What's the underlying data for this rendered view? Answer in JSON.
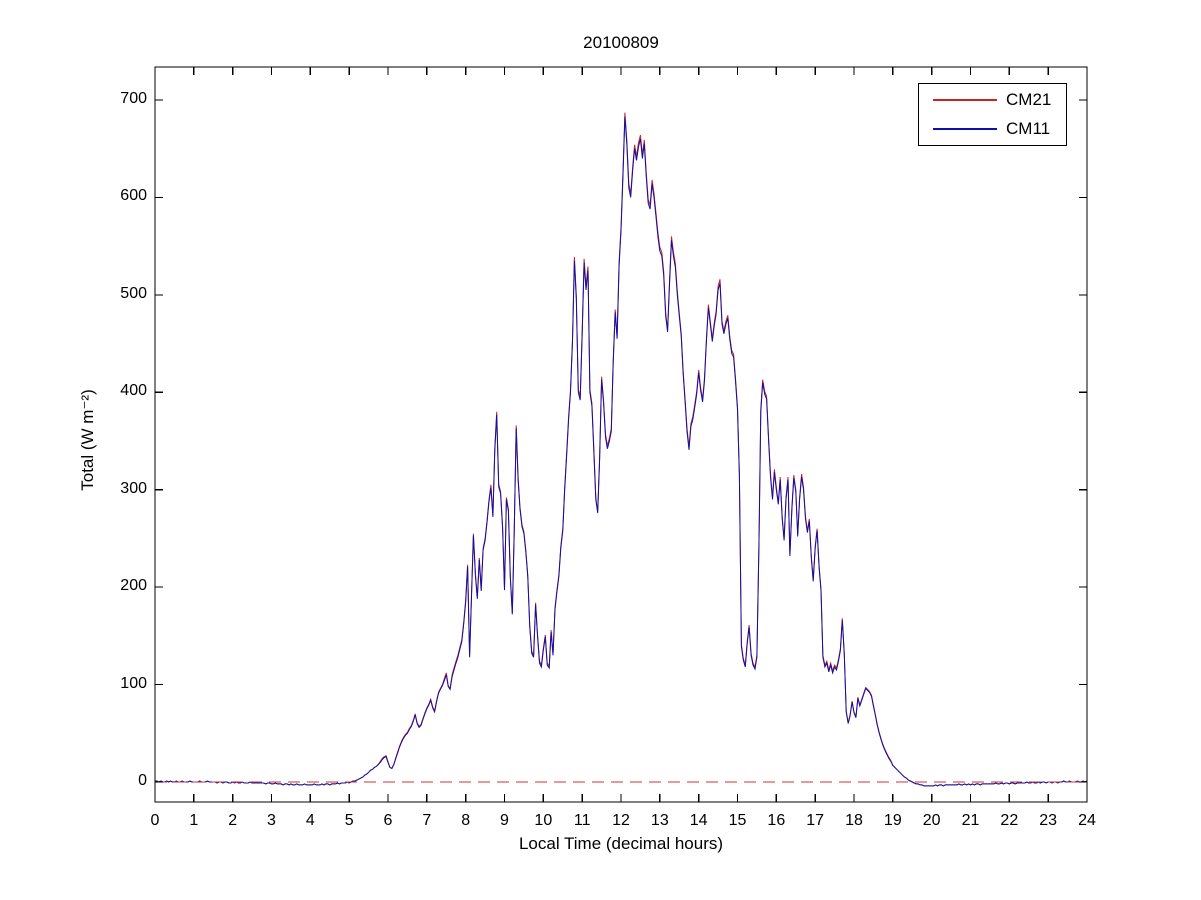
{
  "figure": {
    "background": "#ffffff",
    "frame_color": "#000000"
  },
  "legend": {
    "position": "top-right"
  },
  "chart_data": {
    "type": "line",
    "title": "20100809",
    "xlabel": "Local Time (decimal hours)",
    "ylabel": "Total (W m⁻²)",
    "xlim": [
      0,
      24
    ],
    "ylim": [
      -20,
      734
    ],
    "grid": false,
    "legend_position": "top-right",
    "x_ticks": [
      0,
      1,
      2,
      3,
      4,
      5,
      6,
      7,
      8,
      9,
      10,
      11,
      12,
      13,
      14,
      15,
      16,
      17,
      18,
      19,
      20,
      21,
      22,
      23,
      24
    ],
    "y_ticks": [
      0,
      100,
      200,
      300,
      400,
      500,
      600,
      700
    ],
    "x_start": 0,
    "x_step": 0.05,
    "n_points": 481,
    "zero_reference_line": {
      "y": 0,
      "color": "#cc3333",
      "style": "dashed"
    },
    "series": [
      {
        "name": "CM21",
        "color": "#cc2222",
        "style": "solid",
        "y": [
          1,
          1,
          0,
          1,
          0,
          0,
          1,
          0,
          1,
          0,
          0,
          1,
          0,
          0,
          1,
          0,
          0,
          0,
          1,
          0,
          0,
          0,
          0,
          1,
          0,
          0,
          0,
          1,
          0,
          0,
          0,
          0,
          -1,
          0,
          0,
          -1,
          0,
          0,
          -1,
          -1,
          0,
          -1,
          0,
          -1,
          -1,
          0,
          -1,
          -1,
          -1,
          0,
          -1,
          -1,
          -1,
          -1,
          -1,
          -1,
          -1,
          -2,
          -1,
          -1,
          -2,
          -2,
          -1,
          -2,
          -2,
          -2,
          -3,
          -2,
          -2,
          -3,
          -2,
          -3,
          -3,
          -2,
          -3,
          -3,
          -3,
          -2,
          -3,
          -3,
          -3,
          -3,
          -2,
          -3,
          -3,
          -3,
          -2,
          -3,
          -2,
          -2,
          -3,
          -2,
          -2,
          -2,
          -1,
          -2,
          -1,
          -1,
          -1,
          0,
          -1,
          0,
          1,
          1,
          2,
          3,
          4,
          5,
          7,
          8,
          10,
          12,
          13,
          15,
          16,
          18,
          21,
          24,
          26,
          27,
          21,
          15,
          14,
          18,
          25,
          31,
          37,
          42,
          46,
          49,
          51,
          55,
          58,
          63,
          70,
          61,
          57,
          59,
          65,
          71,
          76,
          80,
          85,
          77,
          73,
          83,
          92,
          96,
          100,
          106,
          112,
          99,
          96,
          110,
          117,
          124,
          130,
          138,
          146,
          164,
          187,
          223,
          130,
          192,
          255,
          214,
          190,
          230,
          198,
          240,
          250,
          268,
          290,
          305,
          274,
          343,
          380,
          306,
          298,
          262,
          199,
          292,
          280,
          212,
          174,
          257,
          366,
          313,
          282,
          264,
          257,
          237,
          212,
          162,
          134,
          130,
          184,
          152,
          124,
          120,
          137,
          151,
          122,
          119,
          156,
          132,
          179,
          197,
          213,
          242,
          260,
          303,
          337,
          375,
          403,
          455,
          539,
          499,
          403,
          395,
          463,
          537,
          509,
          529,
          403,
          389,
          343,
          292,
          278,
          333,
          416,
          393,
          357,
          345,
          353,
          363,
          433,
          485,
          458,
          534,
          569,
          624,
          687,
          659,
          614,
          604,
          632,
          654,
          642,
          656,
          664,
          644,
          659,
          626,
          598,
          592,
          618,
          604,
          584,
          564,
          549,
          544,
          524,
          481,
          465,
          514,
          560,
          544,
          532,
          504,
          481,
          461,
          423,
          393,
          363,
          344,
          368,
          375,
          388,
          401,
          423,
          405,
          393,
          415,
          455,
          490,
          473,
          455,
          471,
          483,
          509,
          516,
          473,
          463,
          473,
          479,
          458,
          443,
          439,
          413,
          385,
          316,
          141,
          127,
          120,
          144,
          161,
          132,
          122,
          118,
          130,
          242,
          383,
          413,
          401,
          396,
          353,
          316,
          292,
          321,
          303,
          287,
          313,
          272,
          250,
          292,
          313,
          234,
          282,
          315,
          300,
          254,
          292,
          316,
          303,
          272,
          258,
          270,
          232,
          208,
          242,
          260,
          222,
          198,
          130,
          120,
          124,
          115,
          122,
          114,
          120,
          117,
          126,
          137,
          168,
          132,
          73,
          61,
          69,
          83,
          72,
          67,
          87,
          79,
          85,
          91,
          97,
          95,
          93,
          89,
          79,
          69,
          59,
          51,
          44,
          38,
          33,
          29,
          25,
          22,
          17,
          15,
          13,
          11,
          9,
          7,
          5,
          4,
          2,
          1,
          0,
          -1,
          -2,
          -2,
          -3,
          -3,
          -4,
          -4,
          -4,
          -4,
          -4,
          -4,
          -3,
          -4,
          -3,
          -3,
          -4,
          -3,
          -3,
          -3,
          -3,
          -3,
          -3,
          -3,
          -2,
          -3,
          -3,
          -2,
          -3,
          -2,
          -3,
          -2,
          -3,
          -2,
          -2,
          -3,
          -2,
          -2,
          -2,
          -2,
          -2,
          -2,
          -2,
          -1,
          -2,
          -2,
          -1,
          -2,
          -1,
          -1,
          -2,
          -1,
          -1,
          -2,
          -1,
          -1,
          -1,
          -1,
          -1,
          0,
          -1,
          -1,
          0,
          -1,
          -1,
          0,
          -1,
          0,
          0,
          -1,
          0,
          0,
          -1,
          0,
          0,
          -1,
          0,
          0,
          1,
          0,
          0,
          1,
          0,
          0,
          0,
          1,
          0,
          0,
          1,
          0,
          1
        ]
      },
      {
        "name": "CM11",
        "color": "#1010a4",
        "style": "solid",
        "y": [
          1,
          1,
          0,
          1,
          0,
          0,
          1,
          0,
          1,
          0,
          0,
          1,
          0,
          0,
          1,
          0,
          0,
          0,
          1,
          0,
          0,
          0,
          0,
          1,
          0,
          0,
          0,
          1,
          0,
          0,
          0,
          0,
          -1,
          0,
          0,
          -1,
          0,
          0,
          -1,
          -1,
          0,
          -1,
          0,
          -1,
          -1,
          0,
          -1,
          -1,
          -1,
          0,
          -1,
          -1,
          -1,
          -1,
          -1,
          -1,
          -1,
          -2,
          -1,
          -1,
          -2,
          -2,
          -1,
          -2,
          -2,
          -2,
          -3,
          -2,
          -2,
          -3,
          -2,
          -3,
          -3,
          -2,
          -3,
          -3,
          -3,
          -2,
          -3,
          -3,
          -3,
          -3,
          -2,
          -3,
          -3,
          -3,
          -2,
          -3,
          -2,
          -2,
          -3,
          -2,
          -2,
          -2,
          -1,
          -2,
          -1,
          -1,
          -1,
          0,
          -1,
          0,
          1,
          1,
          2,
          3,
          4,
          5,
          7,
          8,
          10,
          12,
          13,
          15,
          16,
          18,
          20,
          23,
          25,
          26,
          20,
          15,
          14,
          18,
          24,
          30,
          36,
          41,
          45,
          48,
          50,
          54,
          57,
          62,
          69,
          60,
          56,
          58,
          64,
          70,
          75,
          79,
          84,
          76,
          72,
          82,
          91,
          95,
          99,
          104,
          110,
          98,
          95,
          108,
          115,
          122,
          128,
          136,
          144,
          162,
          185,
          221,
          128,
          190,
          253,
          212,
          188,
          228,
          196,
          238,
          248,
          266,
          288,
          302,
          272,
          340,
          377,
          303,
          296,
          260,
          197,
          290,
          278,
          210,
          172,
          255,
          363,
          310,
          280,
          262,
          255,
          235,
          210,
          160,
          132,
          128,
          182,
          150,
          122,
          118,
          135,
          149,
          120,
          117,
          154,
          130,
          177,
          195,
          211,
          240,
          258,
          300,
          334,
          372,
          400,
          452,
          535,
          496,
          400,
          392,
          460,
          533,
          505,
          525,
          400,
          386,
          340,
          290,
          276,
          330,
          413,
          390,
          354,
          342,
          350,
          360,
          430,
          482,
          455,
          530,
          565,
          620,
          683,
          655,
          610,
          600,
          628,
          650,
          638,
          652,
          660,
          640,
          655,
          622,
          594,
          588,
          614,
          600,
          580,
          560,
          545,
          540,
          520,
          478,
          462,
          510,
          556,
          540,
          528,
          500,
          478,
          458,
          420,
          390,
          360,
          341,
          365,
          372,
          385,
          398,
          420,
          402,
          390,
          412,
          452,
          487,
          470,
          452,
          468,
          480,
          505,
          512,
          470,
          460,
          470,
          476,
          455,
          440,
          436,
          410,
          382,
          313,
          139,
          125,
          118,
          142,
          159,
          130,
          120,
          116,
          128,
          240,
          380,
          410,
          398,
          393,
          350,
          313,
          290,
          318,
          300,
          285,
          310,
          270,
          248,
          290,
          310,
          232,
          280,
          312,
          298,
          252,
          290,
          313,
          300,
          270,
          256,
          268,
          230,
          206,
          240,
          258,
          220,
          196,
          128,
          118,
          122,
          113,
          120,
          112,
          118,
          115,
          124,
          135,
          166,
          130,
          72,
          60,
          68,
          82,
          71,
          66,
          86,
          78,
          84,
          90,
          96,
          94,
          92,
          88,
          78,
          68,
          58,
          50,
          43,
          37,
          32,
          28,
          24,
          21,
          17,
          15,
          13,
          11,
          9,
          7,
          5,
          4,
          2,
          1,
          0,
          -1,
          -2,
          -2,
          -3,
          -3,
          -4,
          -4,
          -4,
          -4,
          -4,
          -4,
          -3,
          -4,
          -3,
          -3,
          -4,
          -3,
          -3,
          -3,
          -3,
          -3,
          -3,
          -3,
          -2,
          -3,
          -3,
          -2,
          -3,
          -2,
          -3,
          -2,
          -3,
          -2,
          -2,
          -3,
          -2,
          -2,
          -2,
          -2,
          -2,
          -2,
          -2,
          -1,
          -2,
          -2,
          -1,
          -2,
          -1,
          -1,
          -2,
          -1,
          -1,
          -2,
          -1,
          -1,
          -1,
          -1,
          -1,
          0,
          -1,
          -1,
          0,
          -1,
          -1,
          0,
          -1,
          0,
          0,
          -1,
          0,
          0,
          -1,
          0,
          0,
          -1,
          0,
          0,
          1,
          0,
          0,
          1,
          0,
          0,
          0,
          1,
          0,
          0,
          1,
          0,
          1
        ]
      }
    ]
  }
}
